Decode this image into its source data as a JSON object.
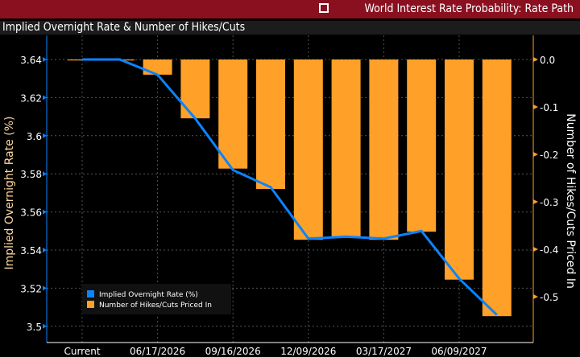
{
  "header": {
    "title": "World Interest Rate Probability: Rate Path",
    "icon": "external-link-icon"
  },
  "panel_title": "Implied Overnight Rate & Number of Hikes/Cuts",
  "colors": {
    "rate": "#0a84ff",
    "hikes": "#ffa028",
    "header_bg": "#8a1020"
  },
  "chart_data": {
    "type": "bar+line",
    "categories": [
      "Current",
      "",
      "06/17/2026",
      "",
      "09/16/2026",
      "",
      "12/09/2026",
      "",
      "03/17/2027",
      "",
      "06/09/2027",
      ""
    ],
    "series": [
      {
        "name": "Implied Overnight Rate (%)",
        "type": "line",
        "axis": "left",
        "values": [
          3.64,
          3.64,
          3.632,
          3.609,
          3.582,
          3.573,
          3.546,
          3.547,
          3.546,
          3.55,
          3.525,
          3.506
        ]
      },
      {
        "name": "Number of Hikes/Cuts Priced In",
        "type": "bar",
        "axis": "right",
        "values": [
          -0.002,
          -0.002,
          -0.032,
          -0.124,
          -0.23,
          -0.273,
          -0.38,
          -0.373,
          -0.38,
          -0.363,
          -0.464,
          -0.541
        ]
      }
    ],
    "left_axis": {
      "label": "Implied Overnight Rate (%)",
      "ticks": [
        "3.64",
        "3.62",
        "3.6",
        "3.58",
        "3.56",
        "3.54",
        "3.52",
        "3.5"
      ],
      "tick_values": [
        3.64,
        3.62,
        3.6,
        3.58,
        3.56,
        3.54,
        3.52,
        3.5
      ]
    },
    "right_axis": {
      "label": "Number of Hikes/Cuts Priced In",
      "ticks": [
        "0.0",
        "-0.1",
        "-0.2",
        "-0.3",
        "-0.4",
        "-0.5"
      ],
      "tick_values": [
        0,
        -0.1,
        -0.2,
        -0.3,
        -0.4,
        -0.5
      ]
    },
    "grid": true,
    "legend_placement": "bottom-left"
  }
}
